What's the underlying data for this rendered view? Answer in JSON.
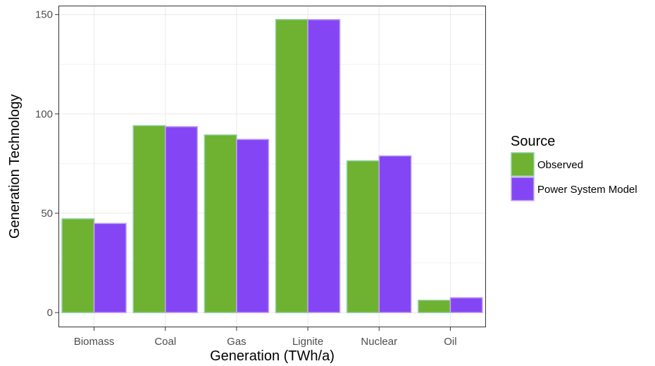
{
  "chart_data": {
    "type": "bar",
    "xlabel": "Generation (TWh/a)",
    "ylabel": "Generation Technology",
    "categories": [
      "Biomass",
      "Coal",
      "Gas",
      "Lignite",
      "Nuclear",
      "Oil"
    ],
    "series": [
      {
        "name": "Observed",
        "values": [
          47.2,
          94.1,
          89.4,
          147.5,
          76.4,
          6.2
        ],
        "color": "#6fb131"
      },
      {
        "name": "Power System Model",
        "values": [
          44.9,
          93.6,
          87.2,
          147.5,
          78.9,
          7.5
        ],
        "color": "#8446f5"
      }
    ],
    "ylim": [
      -7.4,
      154.5
    ],
    "yticks": [
      0,
      50,
      100,
      150
    ],
    "grid": true,
    "legend": {
      "title": "Source",
      "position": "right"
    },
    "bar_outline_colors": [
      "#8ed1a2",
      "#c4a7f0"
    ]
  }
}
